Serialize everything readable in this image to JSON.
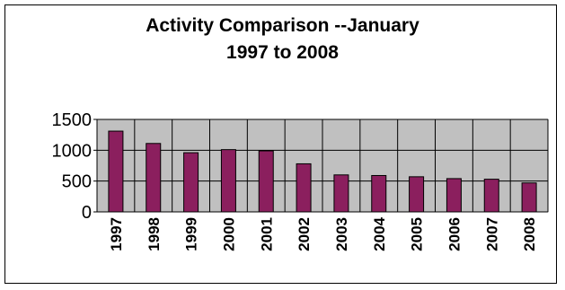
{
  "chart_data": {
    "type": "bar",
    "title": [
      "Activity Comparison --January",
      "1997 to 2008"
    ],
    "categories": [
      "1997",
      "1998",
      "1999",
      "2000",
      "2001",
      "2002",
      "2003",
      "2004",
      "2005",
      "2006",
      "2007",
      "2008"
    ],
    "values": [
      1310,
      1110,
      960,
      1010,
      990,
      780,
      600,
      590,
      570,
      540,
      530,
      470
    ],
    "ylim": [
      0,
      1500
    ],
    "yticks": [
      "0",
      "500",
      "1000",
      "1500"
    ],
    "grid": true,
    "colors": {
      "bar": "#8b1f5e",
      "plot_bg": "#c0c0c0",
      "gridline": "#000000"
    }
  }
}
